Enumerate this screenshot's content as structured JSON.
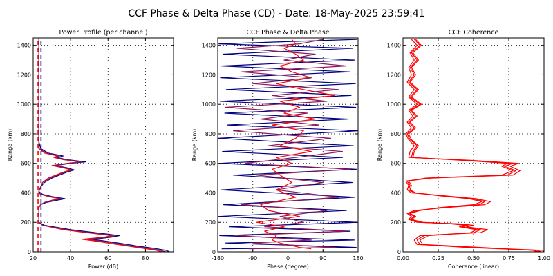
{
  "figure_title": "CCF Phase & Delta Phase (CD) - Date: 18-May-2025 23:59:41",
  "colors": {
    "ch1": "#000080",
    "ch2": "#ff0000",
    "ch3": "#8b1a5a",
    "grid": "#000000",
    "frame": "#000000"
  },
  "chart_data": [
    {
      "type": "line",
      "title": "Power Profile (per channel)",
      "xlabel": "Power (dB)",
      "ylabel": "Range (km)",
      "xlim": [
        20,
        95
      ],
      "ylim": [
        0,
        1450
      ],
      "xticks": [
        20,
        40,
        60,
        80
      ],
      "yticks": [
        0,
        200,
        400,
        600,
        800,
        1000,
        1200,
        1400
      ],
      "grid": "dotted",
      "reference_lines": [
        {
          "x": 22.6,
          "style": "dashed",
          "color": "#ff0000",
          "range": [
            0,
            1450
          ]
        },
        {
          "x": 24.2,
          "style": "dashed",
          "color": "#000080",
          "range": [
            0,
            1450
          ]
        }
      ],
      "series": [
        {
          "color": "#000080",
          "x": [
            93,
            91,
            84,
            75,
            68,
            60,
            52,
            62,
            66,
            60,
            40,
            26,
            23,
            23,
            23,
            23,
            24,
            27,
            33,
            37,
            30,
            25,
            24,
            23,
            24,
            26,
            30,
            34,
            38,
            42,
            38,
            32,
            40,
            48,
            38,
            33,
            36,
            28,
            24,
            23,
            23,
            23,
            23,
            23,
            23
          ],
          "y": [
            0,
            10,
            25,
            40,
            55,
            70,
            85,
            100,
            110,
            120,
            150,
            180,
            200,
            220,
            260,
            300,
            320,
            335,
            350,
            360,
            375,
            390,
            400,
            410,
            440,
            470,
            500,
            520,
            540,
            555,
            570,
            585,
            600,
            610,
            625,
            640,
            650,
            670,
            700,
            750,
            850,
            1000,
            1200,
            1350,
            1450
          ]
        },
        {
          "color": "#ff0000",
          "x": [
            89,
            86,
            78,
            70,
            62,
            55,
            46,
            58,
            62,
            55,
            36,
            25,
            23,
            23,
            23,
            23,
            24,
            26,
            30,
            34,
            28,
            24,
            23,
            23,
            24,
            25,
            28,
            32,
            36,
            40,
            36,
            30,
            38,
            45,
            36,
            31,
            33,
            26,
            23,
            23,
            23,
            23,
            23,
            23,
            23
          ],
          "y": [
            0,
            10,
            25,
            40,
            55,
            70,
            85,
            100,
            110,
            120,
            150,
            180,
            200,
            220,
            260,
            300,
            320,
            335,
            350,
            360,
            375,
            390,
            400,
            410,
            440,
            470,
            500,
            520,
            540,
            555,
            570,
            585,
            600,
            610,
            625,
            640,
            650,
            670,
            700,
            750,
            850,
            1000,
            1200,
            1350,
            1450
          ]
        },
        {
          "color": "#8b1a5a",
          "x": [
            91,
            88,
            81,
            72,
            65,
            58,
            49,
            60,
            64,
            57,
            38,
            25,
            23,
            23,
            23,
            23,
            24,
            26,
            31,
            35,
            29,
            24,
            23,
            23,
            24,
            25,
            29,
            33,
            37,
            41,
            37,
            31,
            39,
            46,
            37,
            32,
            34,
            27,
            23,
            23,
            23,
            23,
            23,
            23,
            23
          ],
          "y": [
            0,
            10,
            25,
            40,
            55,
            70,
            85,
            100,
            110,
            120,
            150,
            180,
            200,
            220,
            260,
            300,
            320,
            335,
            350,
            360,
            375,
            390,
            400,
            410,
            440,
            470,
            500,
            520,
            540,
            555,
            570,
            585,
            600,
            610,
            625,
            640,
            650,
            670,
            700,
            750,
            850,
            1000,
            1200,
            1350,
            1450
          ]
        }
      ]
    },
    {
      "type": "line",
      "title": "CCF Phase & Delta Phase",
      "xlabel": "Phase (degree)",
      "ylabel": "Range (km)",
      "xlim": [
        -180,
        180
      ],
      "ylim": [
        0,
        1450
      ],
      "xticks": [
        -180,
        -90,
        0,
        90,
        180
      ],
      "yticks": [
        0,
        200,
        400,
        600,
        800,
        1000,
        1200,
        1400
      ],
      "grid": "dotted",
      "series": [
        {
          "color": "#000080",
          "x": [
            -170,
            175,
            -160,
            170,
            -175,
            160,
            -150,
            178,
            -178,
            150,
            -165,
            172,
            -172,
            165,
            -140,
            176,
            -176,
            140,
            -168,
            168,
            -179,
            179,
            -155,
            155,
            -162,
            174,
            -174,
            162,
            -158,
            173,
            -173,
            158,
            -171,
            171,
            -166,
            166,
            -177,
            177
          ],
          "y": [
            20,
            30,
            60,
            80,
            110,
            140,
            170,
            200,
            240,
            280,
            320,
            370,
            420,
            470,
            520,
            560,
            600,
            640,
            680,
            720,
            770,
            820,
            860,
            900,
            940,
            980,
            1020,
            1060,
            1100,
            1140,
            1180,
            1220,
            1260,
            1300,
            1340,
            1380,
            1410,
            1440
          ]
        },
        {
          "color": "#ff0000",
          "x": [
            60,
            30,
            -20,
            -40,
            -30,
            -60,
            -10,
            -80,
            30,
            -50,
            -70,
            20,
            -30,
            10,
            -20,
            -40,
            10,
            -30,
            60,
            -20,
            20,
            40,
            -40,
            70,
            -10,
            30,
            -20,
            120,
            40,
            -30,
            60,
            10,
            -20,
            40,
            20,
            -10,
            20,
            10
          ],
          "y": [
            20,
            30,
            60,
            80,
            110,
            140,
            170,
            200,
            240,
            280,
            320,
            370,
            420,
            470,
            520,
            560,
            600,
            640,
            680,
            720,
            770,
            820,
            860,
            900,
            940,
            980,
            1020,
            1060,
            1100,
            1140,
            1180,
            1220,
            1260,
            1300,
            1340,
            1380,
            1410,
            1440
          ]
        },
        {
          "color": "#8b1a5a",
          "x": [
            -100,
            120,
            -90,
            60,
            -130,
            150,
            -60,
            40,
            -20,
            100,
            -120,
            130,
            -30,
            90,
            -80,
            160,
            -110,
            20,
            140,
            -50,
            110,
            -140,
            80,
            -70,
            50,
            -160,
            100,
            -40,
            130,
            -90,
            60,
            -120,
            150,
            -10,
            70,
            -130,
            30,
            90
          ],
          "y": [
            20,
            30,
            60,
            80,
            110,
            140,
            170,
            200,
            240,
            280,
            320,
            370,
            420,
            470,
            520,
            560,
            600,
            640,
            680,
            720,
            770,
            820,
            860,
            900,
            940,
            980,
            1020,
            1060,
            1100,
            1140,
            1180,
            1220,
            1260,
            1300,
            1340,
            1380,
            1410,
            1440
          ]
        }
      ]
    },
    {
      "type": "line",
      "title": "CCF Coherence",
      "xlabel": "Coherence (linear)",
      "ylabel": "Range (km)",
      "xlim": [
        0,
        1
      ],
      "ylim": [
        0,
        1450
      ],
      "xticks": [
        0.0,
        0.25,
        0.5,
        0.75,
        1.0
      ],
      "xtick_labels": [
        "0.00",
        "0.25",
        "0.50",
        "0.75",
        "1.00"
      ],
      "yticks": [
        0,
        200,
        400,
        600,
        800,
        1000,
        1200,
        1400
      ],
      "grid": "dotted",
      "series": [
        {
          "color": "#ff0000",
          "x": [
            1.0,
            0.99,
            0.5,
            0.1,
            0.08,
            0.12,
            0.55,
            0.6,
            0.45,
            0.5,
            0.4,
            0.1,
            0.04,
            0.06,
            0.03,
            0.08,
            0.3,
            0.58,
            0.62,
            0.52,
            0.3,
            0.06,
            0.03,
            0.04,
            0.02,
            0.2,
            0.78,
            0.83,
            0.76,
            0.82,
            0.48,
            0.04,
            0.05,
            0.08,
            0.04,
            0.02,
            0.06,
            0.03,
            0.07,
            0.04,
            0.1,
            0.04,
            0.08,
            0.03,
            0.06,
            0.04,
            0.08,
            0.05,
            0.1,
            0.06
          ],
          "y": [
            0,
            10,
            30,
            50,
            80,
            110,
            130,
            150,
            170,
            180,
            190,
            200,
            220,
            240,
            260,
            280,
            300,
            320,
            340,
            360,
            380,
            400,
            420,
            450,
            480,
            500,
            520,
            550,
            580,
            600,
            620,
            640,
            680,
            720,
            760,
            800,
            840,
            880,
            920,
            960,
            1000,
            1050,
            1100,
            1150,
            1200,
            1250,
            1300,
            1350,
            1400,
            1440
          ]
        },
        {
          "color": "#ff0000",
          "x": [
            0.98,
            0.95,
            0.45,
            0.12,
            0.1,
            0.15,
            0.5,
            0.55,
            0.42,
            0.46,
            0.36,
            0.12,
            0.05,
            0.08,
            0.04,
            0.1,
            0.28,
            0.54,
            0.58,
            0.5,
            0.28,
            0.08,
            0.04,
            0.05,
            0.03,
            0.18,
            0.74,
            0.8,
            0.72,
            0.78,
            0.45,
            0.06,
            0.07,
            0.1,
            0.05,
            0.03,
            0.08,
            0.04,
            0.09,
            0.05,
            0.12,
            0.05,
            0.1,
            0.04,
            0.08,
            0.05,
            0.1,
            0.06,
            0.12,
            0.08
          ],
          "y": [
            0,
            10,
            30,
            50,
            80,
            110,
            130,
            150,
            170,
            180,
            190,
            200,
            220,
            240,
            260,
            280,
            300,
            320,
            340,
            360,
            380,
            400,
            420,
            450,
            480,
            500,
            520,
            550,
            580,
            600,
            620,
            640,
            680,
            720,
            760,
            800,
            840,
            880,
            920,
            960,
            1000,
            1050,
            1100,
            1150,
            1200,
            1250,
            1300,
            1350,
            1400,
            1440
          ]
        },
        {
          "color": "#ff0000",
          "x": [
            0.96,
            0.92,
            0.55,
            0.14,
            0.12,
            0.18,
            0.48,
            0.52,
            0.4,
            0.44,
            0.34,
            0.14,
            0.06,
            0.09,
            0.05,
            0.12,
            0.26,
            0.5,
            0.56,
            0.47,
            0.26,
            0.09,
            0.05,
            0.06,
            0.04,
            0.16,
            0.7,
            0.78,
            0.7,
            0.74,
            0.42,
            0.07,
            0.08,
            0.11,
            0.06,
            0.04,
            0.09,
            0.05,
            0.1,
            0.06,
            0.13,
            0.06,
            0.11,
            0.05,
            0.09,
            0.06,
            0.11,
            0.07,
            0.13,
            0.09
          ],
          "y": [
            0,
            10,
            30,
            50,
            80,
            110,
            130,
            150,
            170,
            180,
            190,
            200,
            220,
            240,
            260,
            280,
            300,
            320,
            340,
            360,
            380,
            400,
            420,
            450,
            480,
            500,
            520,
            550,
            580,
            600,
            620,
            640,
            680,
            720,
            760,
            800,
            840,
            880,
            920,
            960,
            1000,
            1050,
            1100,
            1150,
            1200,
            1250,
            1300,
            1350,
            1400,
            1440
          ]
        }
      ]
    }
  ]
}
